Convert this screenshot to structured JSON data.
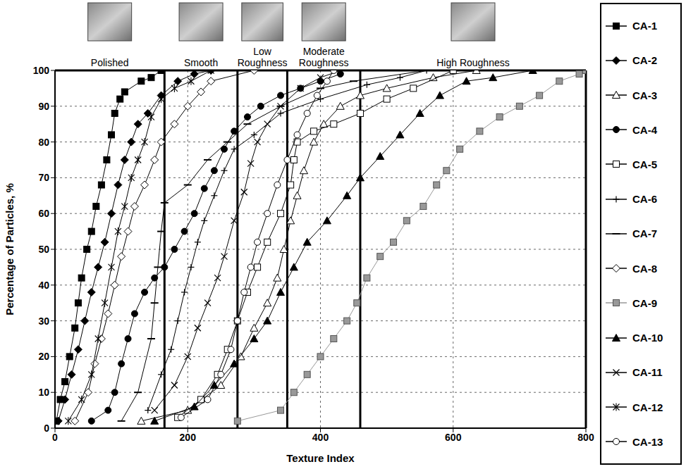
{
  "chart_data": {
    "type": "line",
    "x_label": "Texture Index",
    "y_label": "Percentage of Particles, %",
    "xlim": [
      0,
      800
    ],
    "xticks": [
      0,
      200,
      400,
      600,
      800
    ],
    "ylim": [
      0,
      100
    ],
    "yticks": [
      0,
      10,
      20,
      30,
      40,
      50,
      60,
      70,
      80,
      90,
      100
    ],
    "grid": true,
    "legend": "right",
    "regions": [
      {
        "label": "Polished",
        "from": 0,
        "to": 165
      },
      {
        "label": "Smooth",
        "from": 165,
        "to": 275
      },
      {
        "label": "Low Roughness",
        "from": 275,
        "to": 350
      },
      {
        "label": "Moderate Roughness",
        "from": 350,
        "to": 460
      },
      {
        "label": "High Roughness",
        "from": 460,
        "to": 800
      }
    ],
    "series": [
      {
        "name": "CA-1",
        "color": "#000000",
        "marker": "square",
        "x": [
          2,
          8,
          15,
          22,
          30,
          35,
          40,
          48,
          55,
          62,
          70,
          78,
          85,
          90,
          98,
          105,
          130,
          145,
          160
        ],
        "values": [
          2,
          8,
          13,
          20,
          28,
          35,
          42,
          50,
          55,
          62,
          68,
          75,
          82,
          88,
          92,
          94,
          97,
          98,
          100
        ]
      },
      {
        "name": "CA-2",
        "color": "#000000",
        "marker": "diamond",
        "x": [
          5,
          15,
          25,
          35,
          45,
          55,
          65,
          75,
          85,
          95,
          105,
          115,
          125,
          140,
          160,
          185,
          210,
          235
        ],
        "values": [
          2,
          8,
          15,
          22,
          30,
          38,
          45,
          52,
          60,
          68,
          75,
          80,
          85,
          88,
          93,
          97,
          99,
          100
        ]
      },
      {
        "name": "CA-3",
        "color": "#000000",
        "marker": "triangle-open",
        "x": [
          130,
          200,
          250,
          280,
          300,
          320,
          335,
          345,
          355,
          365,
          375,
          390,
          405,
          430,
          460,
          500,
          570,
          635
        ],
        "values": [
          2,
          5,
          12,
          20,
          28,
          35,
          42,
          50,
          58,
          65,
          72,
          80,
          85,
          90,
          93,
          95,
          98,
          100
        ]
      },
      {
        "name": "CA-4",
        "color": "#000000",
        "marker": "circle",
        "x": [
          55,
          80,
          90,
          100,
          110,
          120,
          135,
          150,
          165,
          180,
          195,
          210,
          225,
          240,
          255,
          270,
          290,
          310,
          340,
          370,
          400,
          430
        ],
        "values": [
          2,
          5,
          10,
          18,
          25,
          32,
          38,
          42,
          45,
          50,
          55,
          60,
          67,
          72,
          78,
          83,
          87,
          90,
          93,
          95,
          97,
          99
        ]
      },
      {
        "name": "CA-5",
        "color": "#000000",
        "marker": "square-open",
        "x": [
          185,
          220,
          245,
          260,
          275,
          290,
          305,
          320,
          340,
          355,
          360,
          365,
          390,
          420,
          460,
          500,
          540,
          600
        ],
        "values": [
          3,
          8,
          15,
          22,
          30,
          38,
          45,
          52,
          60,
          68,
          75,
          80,
          83,
          85,
          88,
          92,
          95,
          100
        ]
      },
      {
        "name": "CA-6",
        "color": "#000000",
        "marker": "plus",
        "x": [
          140,
          160,
          175,
          185,
          195,
          205,
          215,
          225,
          240,
          255,
          270,
          300,
          340,
          400,
          470,
          520,
          560
        ],
        "values": [
          5,
          15,
          22,
          30,
          38,
          45,
          52,
          58,
          65,
          72,
          78,
          82,
          88,
          92,
          96,
          98,
          100
        ]
      },
      {
        "name": "CA-7",
        "color": "#000000",
        "marker": "dash",
        "x": [
          100,
          125,
          145,
          150,
          155,
          160,
          165,
          200,
          230,
          260,
          290,
          340,
          400,
          450,
          560
        ],
        "values": [
          2,
          10,
          25,
          35,
          45,
          55,
          63,
          68,
          75,
          80,
          85,
          90,
          95,
          97,
          100
        ]
      },
      {
        "name": "CA-8",
        "color": "#000000",
        "marker": "diamond-open",
        "x": [
          30,
          50,
          60,
          70,
          80,
          90,
          100,
          110,
          120,
          135,
          150,
          160,
          180,
          200,
          220,
          235,
          300
        ],
        "values": [
          2,
          10,
          18,
          25,
          32,
          40,
          48,
          55,
          62,
          68,
          75,
          80,
          85,
          90,
          94,
          97,
          100
        ]
      },
      {
        "name": "CA-9",
        "color": "#999999",
        "marker": "square",
        "x": [
          275,
          340,
          360,
          380,
          400,
          420,
          440,
          455,
          470,
          490,
          510,
          530,
          555,
          575,
          590,
          610,
          640,
          670,
          700,
          730,
          760,
          790,
          800
        ],
        "values": [
          2,
          5,
          10,
          15,
          20,
          25,
          30,
          35,
          42,
          48,
          52,
          58,
          62,
          68,
          72,
          78,
          83,
          87,
          90,
          93,
          97,
          99,
          100
        ]
      },
      {
        "name": "CA-10",
        "color": "#000000",
        "marker": "triangle",
        "x": [
          150,
          210,
          240,
          270,
          300,
          320,
          340,
          360,
          380,
          410,
          440,
          460,
          490,
          520,
          550,
          580,
          620,
          660,
          720
        ],
        "values": [
          2,
          6,
          12,
          18,
          25,
          30,
          38,
          45,
          52,
          58,
          65,
          70,
          76,
          82,
          88,
          93,
          97,
          98,
          100
        ]
      },
      {
        "name": "CA-11",
        "color": "#000000",
        "marker": "x",
        "x": [
          150,
          180,
          200,
          215,
          230,
          245,
          255,
          270,
          285,
          295,
          305,
          320,
          340,
          370,
          400,
          430
        ],
        "values": [
          5,
          12,
          20,
          28,
          35,
          42,
          48,
          58,
          66,
          74,
          80,
          85,
          90,
          95,
          98,
          100
        ]
      },
      {
        "name": "CA-12",
        "color": "#000000",
        "marker": "asterisk",
        "x": [
          20,
          40,
          55,
          65,
          75,
          85,
          95,
          105,
          115,
          125,
          135,
          145,
          160,
          180,
          205,
          235
        ],
        "values": [
          2,
          8,
          15,
          25,
          35,
          45,
          55,
          62,
          70,
          75,
          80,
          87,
          92,
          95,
          97,
          100
        ]
      },
      {
        "name": "CA-13",
        "color": "#000000",
        "marker": "circle-open",
        "x": [
          190,
          230,
          250,
          265,
          275,
          285,
          295,
          305,
          320,
          335,
          350,
          365,
          380,
          395,
          410,
          420
        ],
        "values": [
          3,
          8,
          15,
          22,
          30,
          38,
          45,
          52,
          60,
          68,
          75,
          82,
          88,
          93,
          97,
          100
        ]
      }
    ]
  }
}
